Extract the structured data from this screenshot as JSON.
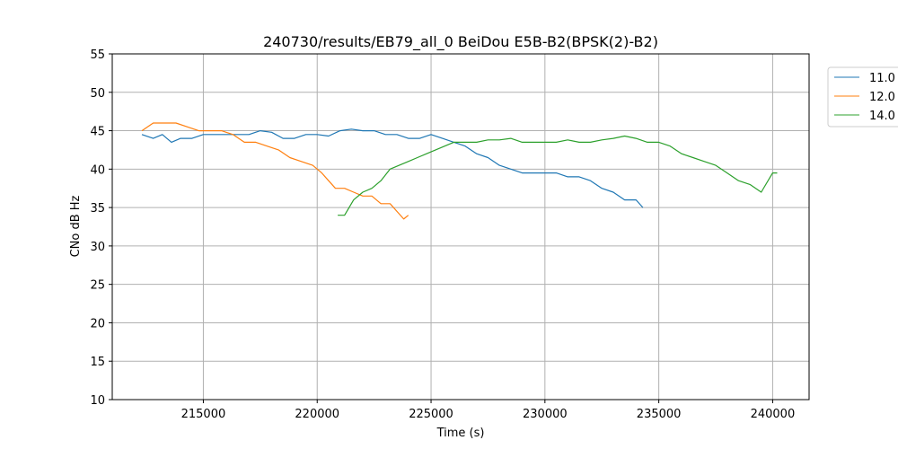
{
  "chart_data": {
    "type": "line",
    "title": "240730/results/EB79_all_0 BeiDou E5B-B2(BPSK(2)-B2)",
    "xlabel": "Time (s)",
    "ylabel": "CNo dB Hz",
    "xlim": [
      211000,
      241600
    ],
    "ylim": [
      10,
      55
    ],
    "xticks": [
      215000,
      220000,
      225000,
      230000,
      235000,
      240000
    ],
    "xtick_labels": [
      "215000",
      "220000",
      "225000",
      "230000",
      "235000",
      "240000"
    ],
    "yticks": [
      10,
      15,
      20,
      25,
      30,
      35,
      40,
      45,
      50,
      55
    ],
    "ytick_labels": [
      "10",
      "15",
      "20",
      "25",
      "30",
      "35",
      "40",
      "45",
      "50",
      "55"
    ],
    "grid": true,
    "legend_position": "outside-top-right",
    "series": [
      {
        "name": "11.0",
        "color": "#1f77b4",
        "points": [
          [
            212300,
            44.5
          ],
          [
            212800,
            44.0
          ],
          [
            213200,
            44.5
          ],
          [
            213600,
            43.5
          ],
          [
            214000,
            44.0
          ],
          [
            214500,
            44.0
          ],
          [
            215000,
            44.5
          ],
          [
            215500,
            44.5
          ],
          [
            216000,
            44.5
          ],
          [
            216500,
            44.5
          ],
          [
            217000,
            44.5
          ],
          [
            217500,
            45.0
          ],
          [
            218000,
            44.8
          ],
          [
            218500,
            44.0
          ],
          [
            219000,
            44.0
          ],
          [
            219500,
            44.5
          ],
          [
            220000,
            44.5
          ],
          [
            220500,
            44.3
          ],
          [
            221000,
            45.0
          ],
          [
            221500,
            45.2
          ],
          [
            222000,
            45.0
          ],
          [
            222500,
            45.0
          ],
          [
            223000,
            44.5
          ],
          [
            223500,
            44.5
          ],
          [
            224000,
            44.0
          ],
          [
            224500,
            44.0
          ],
          [
            225000,
            44.5
          ],
          [
            225500,
            44.0
          ],
          [
            226000,
            43.5
          ],
          [
            226500,
            43.0
          ],
          [
            227000,
            42.0
          ],
          [
            227500,
            41.5
          ],
          [
            228000,
            40.5
          ],
          [
            228500,
            40.0
          ],
          [
            229000,
            39.5
          ],
          [
            229500,
            39.5
          ],
          [
            230000,
            39.5
          ],
          [
            230500,
            39.5
          ],
          [
            231000,
            39.0
          ],
          [
            231500,
            39.0
          ],
          [
            232000,
            38.5
          ],
          [
            232500,
            37.5
          ],
          [
            233000,
            37.0
          ],
          [
            233500,
            36.0
          ],
          [
            234000,
            36.0
          ],
          [
            234300,
            35.0
          ]
        ]
      },
      {
        "name": "12.0",
        "color": "#ff7f0e",
        "points": [
          [
            212300,
            45.0
          ],
          [
            212800,
            46.0
          ],
          [
            213300,
            46.0
          ],
          [
            213800,
            46.0
          ],
          [
            214300,
            45.5
          ],
          [
            214800,
            45.0
          ],
          [
            215300,
            45.0
          ],
          [
            215800,
            45.0
          ],
          [
            216300,
            44.5
          ],
          [
            216800,
            43.5
          ],
          [
            217300,
            43.5
          ],
          [
            217800,
            43.0
          ],
          [
            218300,
            42.5
          ],
          [
            218800,
            41.5
          ],
          [
            219300,
            41.0
          ],
          [
            219800,
            40.5
          ],
          [
            220200,
            39.5
          ],
          [
            220500,
            38.5
          ],
          [
            220800,
            37.5
          ],
          [
            221200,
            37.5
          ],
          [
            221600,
            37.0
          ],
          [
            222000,
            36.5
          ],
          [
            222400,
            36.5
          ],
          [
            222800,
            35.5
          ],
          [
            223200,
            35.5
          ],
          [
            223500,
            34.5
          ],
          [
            223800,
            33.5
          ],
          [
            224000,
            34.0
          ]
        ]
      },
      {
        "name": "14.0",
        "color": "#2ca02c",
        "points": [
          [
            220900,
            34.0
          ],
          [
            221200,
            34.0
          ],
          [
            221600,
            36.0
          ],
          [
            222000,
            37.0
          ],
          [
            222400,
            37.5
          ],
          [
            222800,
            38.5
          ],
          [
            223200,
            40.0
          ],
          [
            223600,
            40.5
          ],
          [
            224000,
            41.0
          ],
          [
            224400,
            41.5
          ],
          [
            224800,
            42.0
          ],
          [
            225200,
            42.5
          ],
          [
            225600,
            43.0
          ],
          [
            226000,
            43.5
          ],
          [
            226500,
            43.5
          ],
          [
            227000,
            43.5
          ],
          [
            227500,
            43.8
          ],
          [
            228000,
            43.8
          ],
          [
            228500,
            44.0
          ],
          [
            229000,
            43.5
          ],
          [
            229500,
            43.5
          ],
          [
            230000,
            43.5
          ],
          [
            230500,
            43.5
          ],
          [
            231000,
            43.8
          ],
          [
            231500,
            43.5
          ],
          [
            232000,
            43.5
          ],
          [
            232500,
            43.8
          ],
          [
            233000,
            44.0
          ],
          [
            233500,
            44.3
          ],
          [
            234000,
            44.0
          ],
          [
            234500,
            43.5
          ],
          [
            235000,
            43.5
          ],
          [
            235500,
            43.0
          ],
          [
            236000,
            42.0
          ],
          [
            236500,
            41.5
          ],
          [
            237000,
            41.0
          ],
          [
            237500,
            40.5
          ],
          [
            238000,
            39.5
          ],
          [
            238500,
            38.5
          ],
          [
            239000,
            38.0
          ],
          [
            239500,
            37.0
          ],
          [
            240000,
            39.5
          ],
          [
            240200,
            39.5
          ]
        ]
      }
    ]
  }
}
